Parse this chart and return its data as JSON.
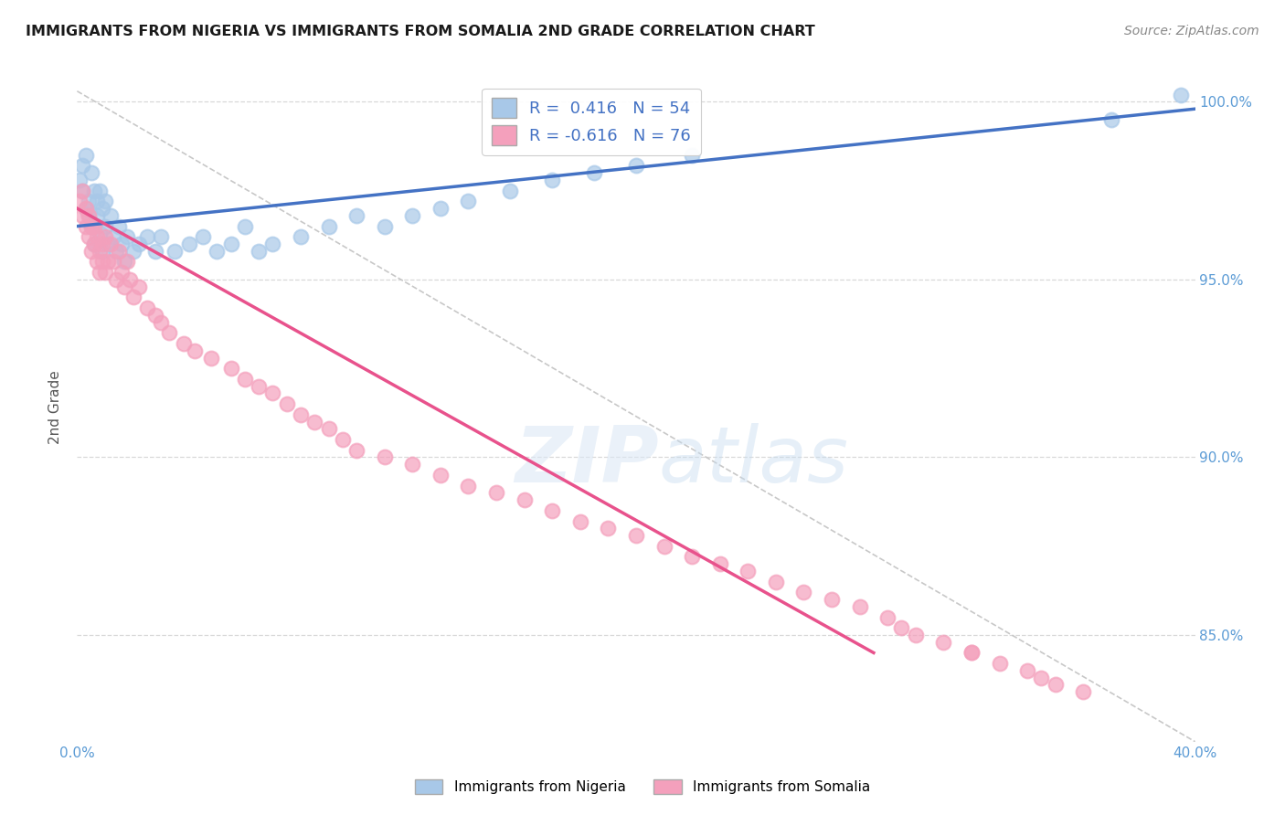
{
  "title": "IMMIGRANTS FROM NIGERIA VS IMMIGRANTS FROM SOMALIA 2ND GRADE CORRELATION CHART",
  "source": "Source: ZipAtlas.com",
  "ylabel": "2nd Grade",
  "x_min": 0.0,
  "x_max": 0.4,
  "y_min": 0.82,
  "y_max": 1.008,
  "nigeria_R": 0.416,
  "nigeria_N": 54,
  "somalia_R": -0.616,
  "somalia_N": 76,
  "nigeria_color": "#a8c8e8",
  "somalia_color": "#f4a0bc",
  "nigeria_line_color": "#4472c4",
  "somalia_line_color": "#e8528c",
  "dashed_line_color": "#c8c8c8",
  "grid_color": "#d8d8d8",
  "axis_label_color": "#5b9bd5",
  "nigeria_x": [
    0.001,
    0.002,
    0.002,
    0.003,
    0.003,
    0.004,
    0.004,
    0.005,
    0.005,
    0.006,
    0.006,
    0.007,
    0.007,
    0.008,
    0.008,
    0.009,
    0.009,
    0.01,
    0.01,
    0.011,
    0.012,
    0.013,
    0.014,
    0.015,
    0.016,
    0.017,
    0.018,
    0.02,
    0.022,
    0.025,
    0.028,
    0.03,
    0.035,
    0.04,
    0.045,
    0.05,
    0.055,
    0.06,
    0.065,
    0.07,
    0.08,
    0.09,
    0.1,
    0.11,
    0.12,
    0.13,
    0.14,
    0.155,
    0.17,
    0.185,
    0.2,
    0.22,
    0.37,
    0.395
  ],
  "nigeria_y": [
    0.978,
    0.975,
    0.982,
    0.97,
    0.985,
    0.972,
    0.968,
    0.98,
    0.965,
    0.975,
    0.96,
    0.972,
    0.968,
    0.975,
    0.963,
    0.97,
    0.958,
    0.965,
    0.972,
    0.96,
    0.968,
    0.962,
    0.958,
    0.965,
    0.96,
    0.955,
    0.962,
    0.958,
    0.96,
    0.962,
    0.958,
    0.962,
    0.958,
    0.96,
    0.962,
    0.958,
    0.96,
    0.965,
    0.958,
    0.96,
    0.962,
    0.965,
    0.968,
    0.965,
    0.968,
    0.97,
    0.972,
    0.975,
    0.978,
    0.98,
    0.982,
    0.985,
    0.995,
    1.002
  ],
  "somalia_x": [
    0.001,
    0.002,
    0.002,
    0.003,
    0.003,
    0.004,
    0.004,
    0.005,
    0.005,
    0.006,
    0.006,
    0.007,
    0.007,
    0.008,
    0.008,
    0.009,
    0.009,
    0.01,
    0.01,
    0.011,
    0.012,
    0.013,
    0.014,
    0.015,
    0.016,
    0.017,
    0.018,
    0.019,
    0.02,
    0.022,
    0.025,
    0.028,
    0.03,
    0.033,
    0.038,
    0.042,
    0.048,
    0.055,
    0.06,
    0.065,
    0.07,
    0.075,
    0.08,
    0.085,
    0.09,
    0.095,
    0.1,
    0.11,
    0.12,
    0.13,
    0.14,
    0.15,
    0.16,
    0.17,
    0.18,
    0.19,
    0.2,
    0.21,
    0.22,
    0.23,
    0.24,
    0.25,
    0.26,
    0.27,
    0.28,
    0.29,
    0.295,
    0.3,
    0.31,
    0.32,
    0.33,
    0.34,
    0.345,
    0.35,
    0.36,
    0.32
  ],
  "somalia_y": [
    0.972,
    0.968,
    0.975,
    0.965,
    0.97,
    0.962,
    0.968,
    0.958,
    0.965,
    0.96,
    0.965,
    0.955,
    0.962,
    0.958,
    0.952,
    0.96,
    0.955,
    0.952,
    0.962,
    0.955,
    0.96,
    0.955,
    0.95,
    0.958,
    0.952,
    0.948,
    0.955,
    0.95,
    0.945,
    0.948,
    0.942,
    0.94,
    0.938,
    0.935,
    0.932,
    0.93,
    0.928,
    0.925,
    0.922,
    0.92,
    0.918,
    0.915,
    0.912,
    0.91,
    0.908,
    0.905,
    0.902,
    0.9,
    0.898,
    0.895,
    0.892,
    0.89,
    0.888,
    0.885,
    0.882,
    0.88,
    0.878,
    0.875,
    0.872,
    0.87,
    0.868,
    0.865,
    0.862,
    0.86,
    0.858,
    0.855,
    0.852,
    0.85,
    0.848,
    0.845,
    0.842,
    0.84,
    0.838,
    0.836,
    0.834,
    0.845
  ]
}
